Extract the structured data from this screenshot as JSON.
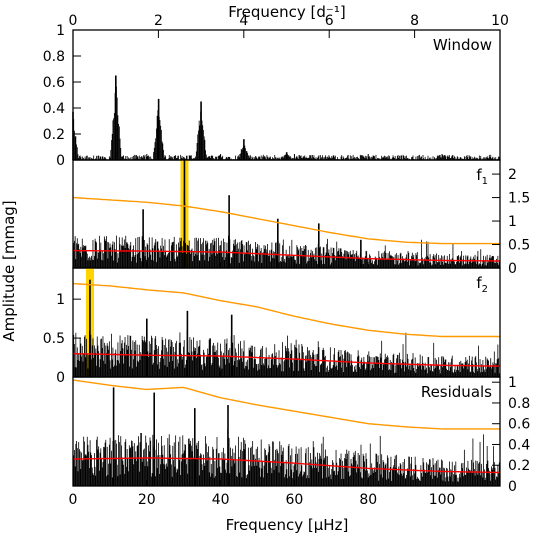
{
  "figure": {
    "top_axis_label": "Frequency [d⁻¹]",
    "bottom_axis_label": "Frequency [μHz]",
    "left_axis_label": "Amplitude [mmag]"
  },
  "chart_data": [
    {
      "type": "line",
      "panel": "window",
      "annotation": "Window",
      "xlim": [
        0,
        115.7
      ],
      "ylim": [
        0,
        1
      ],
      "yticks": [
        "0",
        "0.2",
        "0.4",
        "0.6",
        "0.8",
        "1"
      ],
      "top_xlim": [
        0,
        10
      ],
      "top_xticks": [
        "0",
        "2",
        "4",
        "6",
        "8",
        "10"
      ],
      "peaks": [
        {
          "x": 0.0,
          "y": 0.37
        },
        {
          "x": 11.6,
          "y": 0.65
        },
        {
          "x": 23.2,
          "y": 0.47
        },
        {
          "x": 34.7,
          "y": 0.45
        },
        {
          "x": 46.3,
          "y": 0.16
        },
        {
          "x": 57.9,
          "y": 0.06
        }
      ],
      "noise_level": 0.04
    },
    {
      "type": "line",
      "panel": "f1",
      "annotation": "f",
      "annotation_sub": "1",
      "xlim": [
        0,
        115.7
      ],
      "ylim": [
        0,
        2.3
      ],
      "yticks": [
        "0",
        "0.5",
        "1",
        "1.5",
        "2"
      ],
      "highlight_x": 30.2,
      "highlight_color": "#ffd400",
      "peaks": [
        {
          "x": 30.2,
          "y": 2.3
        },
        {
          "x": 42.3,
          "y": 1.55
        },
        {
          "x": 19.0,
          "y": 1.25
        },
        {
          "x": 55.5,
          "y": 1.05
        },
        {
          "x": 66.6,
          "y": 0.95
        },
        {
          "x": 78.0,
          "y": 0.6
        }
      ],
      "threshold": {
        "x": [
          0,
          10,
          20,
          30,
          40,
          50,
          60,
          70,
          80,
          90,
          100,
          115.7
        ],
        "y": [
          1.5,
          1.45,
          1.4,
          1.32,
          1.2,
          1.05,
          0.9,
          0.75,
          0.62,
          0.55,
          0.52,
          0.52
        ]
      },
      "mean_noise": {
        "x": [
          0,
          20,
          40,
          60,
          80,
          100,
          115.7
        ],
        "y": [
          0.37,
          0.36,
          0.34,
          0.27,
          0.2,
          0.16,
          0.15
        ]
      },
      "noise_level": 0.55
    },
    {
      "type": "line",
      "panel": "f2",
      "annotation": "f",
      "annotation_sub": "2",
      "xlim": [
        0,
        115.7
      ],
      "ylim": [
        0,
        1.4
      ],
      "yticks": [
        "0",
        "0.5",
        "1"
      ],
      "highlight_x": 4.6,
      "highlight_color": "#ffd400",
      "peaks": [
        {
          "x": 4.6,
          "y": 1.25
        },
        {
          "x": 31.0,
          "y": 0.85
        },
        {
          "x": 43.0,
          "y": 0.8
        },
        {
          "x": 20.0,
          "y": 0.75
        }
      ],
      "threshold": {
        "x": [
          0,
          10,
          20,
          30,
          40,
          50,
          60,
          70,
          80,
          90,
          100,
          115.7
        ],
        "y": [
          1.2,
          1.17,
          1.12,
          1.08,
          0.98,
          0.9,
          0.78,
          0.68,
          0.6,
          0.55,
          0.52,
          0.52
        ]
      },
      "mean_noise": {
        "x": [
          0,
          20,
          40,
          60,
          80,
          100,
          115.7
        ],
        "y": [
          0.3,
          0.28,
          0.27,
          0.23,
          0.18,
          0.15,
          0.14
        ]
      },
      "noise_level": 0.48
    },
    {
      "type": "line",
      "panel": "residuals",
      "annotation": "Residuals",
      "xlim": [
        0,
        115.7
      ],
      "ylim": [
        0,
        1.05
      ],
      "yticks": [
        "0",
        "0.2",
        "0.4",
        "0.6",
        "0.8",
        "1"
      ],
      "xticks": [
        "0",
        "20",
        "40",
        "60",
        "80",
        "100"
      ],
      "peaks": [
        {
          "x": 11.0,
          "y": 0.95
        },
        {
          "x": 22.0,
          "y": 0.9
        },
        {
          "x": 42.0,
          "y": 0.78
        },
        {
          "x": 33.0,
          "y": 0.75
        }
      ],
      "threshold": {
        "x": [
          0,
          10,
          20,
          30,
          40,
          50,
          60,
          70,
          80,
          90,
          100,
          115.7
        ],
        "y": [
          1.02,
          0.97,
          0.93,
          0.95,
          0.85,
          0.78,
          0.72,
          0.66,
          0.6,
          0.57,
          0.55,
          0.55
        ]
      },
      "mean_noise": {
        "x": [
          0,
          20,
          40,
          60,
          80,
          100,
          115.7
        ],
        "y": [
          0.26,
          0.27,
          0.26,
          0.22,
          0.17,
          0.14,
          0.13
        ]
      },
      "noise_level": 0.42
    }
  ],
  "colors": {
    "spectrum": "#000000",
    "threshold": "#ff9900",
    "mean_noise": "#ff0000",
    "highlight": "#ffd400"
  }
}
